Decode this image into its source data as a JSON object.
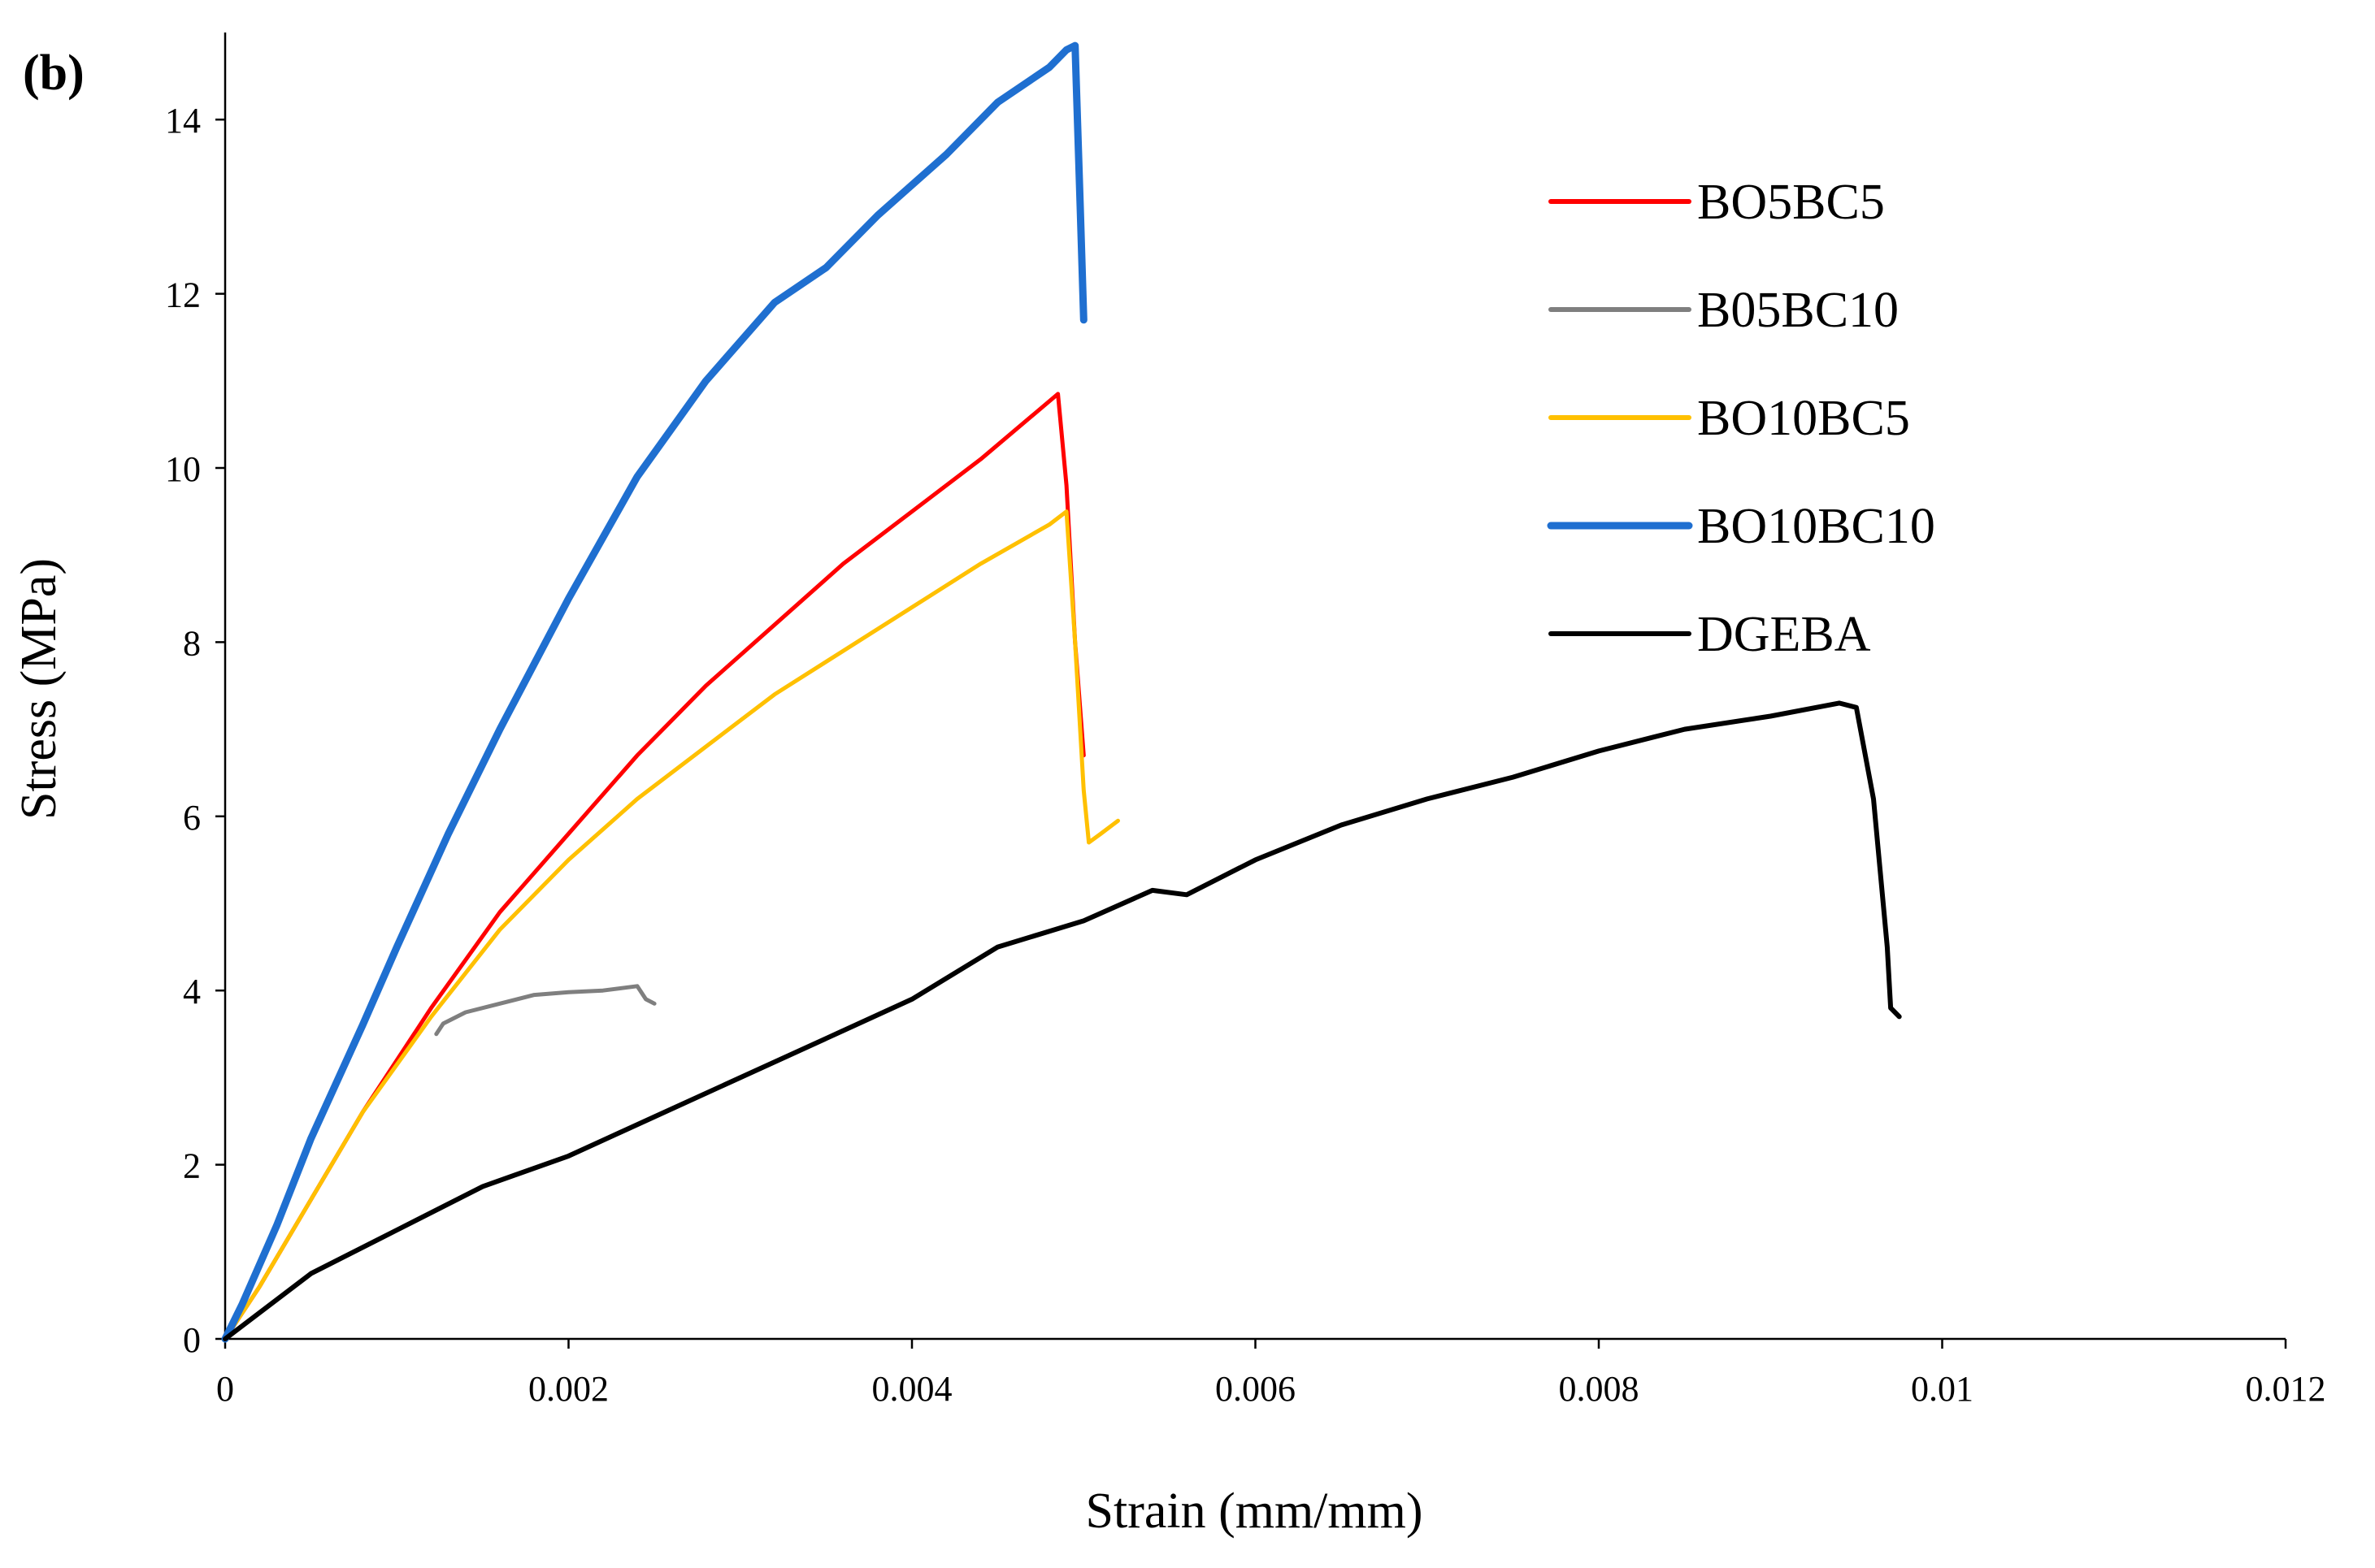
{
  "chart_data": {
    "type": "line",
    "panel_label": "(b)",
    "xlabel": "Strain (mm/mm)",
    "ylabel": "Stress (MPa)",
    "xlim": [
      0,
      0.012
    ],
    "ylim": [
      0,
      15
    ],
    "grid": false,
    "legend_position": "top-right",
    "x_ticks": [
      {
        "value": 0,
        "label": "0"
      },
      {
        "value": 0.002,
        "label": "0.002"
      },
      {
        "value": 0.004,
        "label": "0.004"
      },
      {
        "value": 0.006,
        "label": "0.006"
      },
      {
        "value": 0.008,
        "label": "0.008"
      },
      {
        "value": 0.01,
        "label": "0.01"
      },
      {
        "value": 0.012,
        "label": "0.012"
      }
    ],
    "y_ticks": [
      {
        "value": 0,
        "label": "0"
      },
      {
        "value": 2,
        "label": "2"
      },
      {
        "value": 4,
        "label": "4"
      },
      {
        "value": 6,
        "label": "6"
      },
      {
        "value": 8,
        "label": "8"
      },
      {
        "value": 10,
        "label": "10"
      },
      {
        "value": 12,
        "label": "12"
      },
      {
        "value": 14,
        "label": "14"
      }
    ],
    "series": [
      {
        "name": "BO5BC5",
        "color": "#ff0000",
        "points": [
          [
            0,
            0
          ],
          [
            0.0002,
            0.6
          ],
          [
            0.0005,
            1.6
          ],
          [
            0.0008,
            2.6
          ],
          [
            0.0012,
            3.8
          ],
          [
            0.0016,
            4.9
          ],
          [
            0.002,
            5.8
          ],
          [
            0.0024,
            6.7
          ],
          [
            0.0028,
            7.5
          ],
          [
            0.0032,
            8.2
          ],
          [
            0.0036,
            8.9
          ],
          [
            0.004,
            9.5
          ],
          [
            0.0044,
            10.1
          ],
          [
            0.0047,
            10.6
          ],
          [
            0.00485,
            10.85
          ],
          [
            0.0049,
            9.8
          ],
          [
            0.00495,
            8.0
          ],
          [
            0.005,
            6.7
          ]
        ]
      },
      {
        "name": "B05BC10",
        "color": "#7f7f7f",
        "points": [
          [
            0.00123,
            3.5
          ],
          [
            0.00127,
            3.62
          ],
          [
            0.0014,
            3.75
          ],
          [
            0.0016,
            3.85
          ],
          [
            0.0018,
            3.95
          ],
          [
            0.002,
            3.98
          ],
          [
            0.0022,
            4.0
          ],
          [
            0.0024,
            4.05
          ],
          [
            0.00245,
            3.9
          ],
          [
            0.0025,
            3.85
          ]
        ]
      },
      {
        "name": "BO10BC5",
        "color": "#ffc000",
        "points": [
          [
            0,
            0
          ],
          [
            0.0002,
            0.6
          ],
          [
            0.0005,
            1.6
          ],
          [
            0.0008,
            2.6
          ],
          [
            0.0012,
            3.7
          ],
          [
            0.0016,
            4.7
          ],
          [
            0.002,
            5.5
          ],
          [
            0.0024,
            6.2
          ],
          [
            0.0028,
            6.8
          ],
          [
            0.0032,
            7.4
          ],
          [
            0.0036,
            7.9
          ],
          [
            0.004,
            8.4
          ],
          [
            0.0044,
            8.9
          ],
          [
            0.0048,
            9.35
          ],
          [
            0.0049,
            9.5
          ],
          [
            0.00495,
            8.0
          ],
          [
            0.005,
            6.3
          ],
          [
            0.00503,
            5.7
          ],
          [
            0.0051,
            5.8
          ],
          [
            0.0052,
            5.95
          ]
        ]
      },
      {
        "name": "BO10BC10",
        "color": "#1f6fd0",
        "points": [
          [
            0,
            0
          ],
          [
            0.0001,
            0.4
          ],
          [
            0.0003,
            1.3
          ],
          [
            0.0005,
            2.3
          ],
          [
            0.0008,
            3.6
          ],
          [
            0.001,
            4.5
          ],
          [
            0.0013,
            5.8
          ],
          [
            0.0016,
            7.0
          ],
          [
            0.002,
            8.5
          ],
          [
            0.0024,
            9.9
          ],
          [
            0.0028,
            11.0
          ],
          [
            0.0032,
            11.9
          ],
          [
            0.0035,
            12.3
          ],
          [
            0.0038,
            12.9
          ],
          [
            0.0042,
            13.6
          ],
          [
            0.0045,
            14.2
          ],
          [
            0.0048,
            14.6
          ],
          [
            0.0049,
            14.8
          ],
          [
            0.00495,
            14.85
          ],
          [
            0.00498,
            13.0
          ],
          [
            0.005,
            11.7
          ]
        ]
      },
      {
        "name": "DGEBA",
        "color": "#000000",
        "points": [
          [
            0,
            0
          ],
          [
            0.0005,
            0.75
          ],
          [
            0.001,
            1.25
          ],
          [
            0.0015,
            1.75
          ],
          [
            0.002,
            2.1
          ],
          [
            0.0025,
            2.55
          ],
          [
            0.003,
            3.0
          ],
          [
            0.0035,
            3.45
          ],
          [
            0.004,
            3.9
          ],
          [
            0.0045,
            4.5
          ],
          [
            0.005,
            4.8
          ],
          [
            0.0054,
            5.15
          ],
          [
            0.0056,
            5.1
          ],
          [
            0.006,
            5.5
          ],
          [
            0.0065,
            5.9
          ],
          [
            0.007,
            6.2
          ],
          [
            0.0075,
            6.45
          ],
          [
            0.008,
            6.75
          ],
          [
            0.0085,
            7.0
          ],
          [
            0.009,
            7.15
          ],
          [
            0.0094,
            7.3
          ],
          [
            0.0095,
            7.25
          ],
          [
            0.0096,
            6.2
          ],
          [
            0.00968,
            4.5
          ],
          [
            0.0097,
            3.8
          ],
          [
            0.00975,
            3.7
          ]
        ]
      }
    ]
  }
}
